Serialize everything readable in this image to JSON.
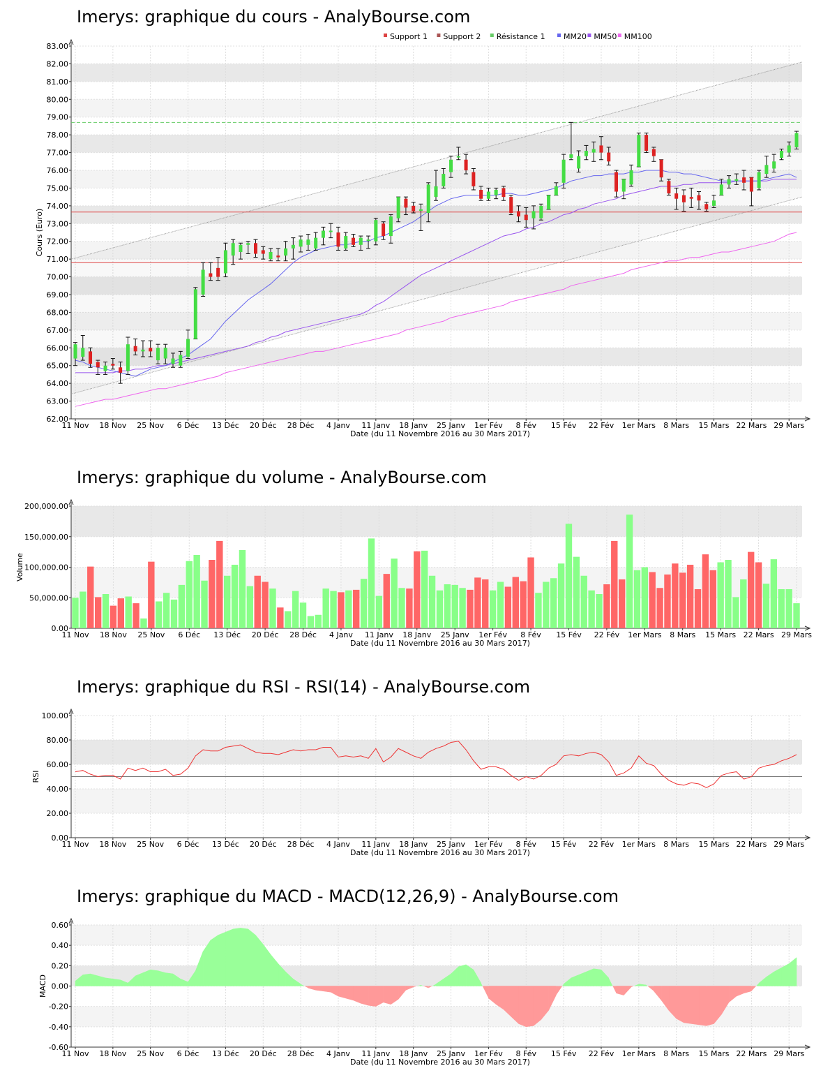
{
  "titles": {
    "price": "Imerys: graphique du cours - AnalyBourse.com",
    "volume": "Imerys: graphique du volume - AnalyBourse.com",
    "rsi": "Imerys: graphique du RSI - RSI(14) - AnalyBourse.com",
    "macd": "Imerys: graphique du MACD - MACD(12,26,9) - AnalyBourse.com"
  },
  "x_axis": {
    "ticks": [
      "11 Nov",
      "18 Nov",
      "25 Nov",
      "6 Déc",
      "13 Déc",
      "20 Déc",
      "28 Déc",
      "4 Janv",
      "11 Janv",
      "18 Janv",
      "25 Janv",
      "1er Fév",
      "8 Fév",
      "15 Fév",
      "22 Fév",
      "1er Mars",
      "8 Mars",
      "15 Mars",
      "22 Mars",
      "29 Mars"
    ],
    "tick_index": [
      0,
      5,
      10,
      15,
      20,
      25,
      30,
      35,
      40,
      45,
      50,
      55,
      60,
      65,
      70,
      75,
      80,
      85,
      90,
      95
    ],
    "label": "Date (du 11 Novembre 2016 au 30 Mars 2017)"
  },
  "colors": {
    "up": "#44dd44",
    "down": "#dd2222",
    "volume_up": "#88ff88",
    "volume_down": "#ff6666",
    "mm20": "#6666ee",
    "mm50": "#9955ee",
    "mm100": "#ee66ee",
    "support": "#dd4444",
    "resistance": "#66cc66",
    "rsi": "#ee3333",
    "macd_pos": "#99ff99",
    "macd_neg": "#ff9999",
    "band_light": "#f4f4f4",
    "band_dark": "#e8e8e8"
  },
  "chart_data": [
    {
      "name": "price",
      "type": "candlestick",
      "ylabel": "Cours (Euro)",
      "ylim": [
        62,
        83
      ],
      "ytick_step": 1,
      "ytick_decimals": 2,
      "legend": [
        "Support 1",
        "Support 2",
        "Résistance 1",
        "MM20",
        "MM50",
        "MM100"
      ],
      "legend_colors": [
        "#dd4444",
        "#aa5555",
        "#66cc66",
        "#6666ee",
        "#9955ee",
        "#ee66ee"
      ],
      "support_1": 73.65,
      "support_2": 70.8,
      "resistance_1": 78.7,
      "channel_upper": [
        71.0,
        82.1
      ],
      "channel_lower": [
        63.4,
        74.5
      ],
      "candles": [
        [
          65.4,
          66.2,
          66.3,
          65.0
        ],
        [
          65.5,
          66.0,
          66.7,
          65.3
        ],
        [
          65.8,
          65.1,
          66.0,
          64.9
        ],
        [
          65.2,
          64.9,
          65.3,
          64.5
        ],
        [
          64.7,
          65.0,
          65.2,
          64.5
        ],
        [
          65.1,
          65.0,
          65.4,
          64.8
        ],
        [
          64.9,
          64.6,
          65.2,
          64.0
        ],
        [
          64.7,
          66.2,
          66.6,
          64.5
        ],
        [
          66.1,
          65.8,
          66.5,
          65.6
        ],
        [
          65.8,
          65.9,
          66.4,
          65.5
        ],
        [
          66.0,
          65.8,
          66.4,
          65.5
        ],
        [
          65.3,
          66.0,
          66.2,
          65.1
        ],
        [
          65.4,
          66.0,
          66.2,
          65.1
        ],
        [
          65.1,
          65.4,
          65.7,
          64.9
        ],
        [
          65.0,
          65.6,
          65.8,
          64.9
        ],
        [
          65.5,
          66.5,
          67.0,
          65.4
        ],
        [
          66.5,
          69.3,
          69.4,
          66.5
        ],
        [
          69.0,
          70.4,
          70.8,
          68.9
        ],
        [
          70.2,
          70.0,
          70.8,
          69.8
        ],
        [
          70.5,
          70.0,
          71.1,
          69.8
        ],
        [
          70.2,
          71.5,
          71.9,
          70.0
        ],
        [
          71.2,
          71.9,
          72.1,
          70.7
        ],
        [
          71.4,
          71.8,
          71.9,
          71.0
        ],
        [
          71.8,
          71.9,
          72.0,
          71.3
        ],
        [
          71.9,
          71.3,
          72.1,
          71.1
        ],
        [
          71.5,
          71.3,
          71.7,
          71.0
        ],
        [
          71.0,
          71.4,
          71.6,
          70.9
        ],
        [
          71.2,
          71.1,
          71.6,
          70.9
        ],
        [
          71.2,
          71.6,
          72.0,
          70.9
        ],
        [
          71.6,
          71.8,
          72.2,
          71.0
        ],
        [
          71.7,
          72.1,
          72.3,
          71.4
        ],
        [
          71.8,
          72.1,
          72.4,
          71.5
        ],
        [
          71.6,
          72.2,
          72.5,
          71.5
        ],
        [
          72.2,
          72.6,
          72.8,
          71.8
        ],
        [
          72.6,
          72.6,
          73.0,
          72.2
        ],
        [
          72.5,
          71.7,
          72.8,
          71.5
        ],
        [
          71.6,
          72.3,
          72.5,
          71.5
        ],
        [
          72.2,
          71.8,
          72.4,
          71.7
        ],
        [
          71.8,
          72.2,
          72.3,
          71.5
        ],
        [
          72.1,
          72.1,
          72.3,
          71.6
        ],
        [
          72.0,
          73.2,
          73.3,
          71.8
        ],
        [
          73.0,
          72.3,
          73.1,
          72.1
        ],
        [
          72.3,
          73.4,
          73.5,
          71.9
        ],
        [
          73.3,
          74.5,
          74.5,
          73.1
        ],
        [
          74.4,
          73.9,
          74.5,
          73.5
        ],
        [
          74.0,
          73.7,
          74.2,
          73.6
        ],
        [
          73.8,
          73.8,
          74.1,
          72.6
        ],
        [
          73.6,
          75.2,
          75.3,
          73.1
        ],
        [
          74.5,
          75.1,
          76.0,
          74.3
        ],
        [
          75.1,
          75.8,
          76.1,
          75.0
        ],
        [
          75.9,
          76.6,
          76.8,
          75.6
        ],
        [
          76.8,
          76.8,
          77.3,
          76.6
        ],
        [
          76.6,
          76.0,
          76.9,
          75.8
        ],
        [
          75.9,
          75.1,
          76.1,
          74.9
        ],
        [
          74.9,
          74.4,
          75.1,
          74.3
        ],
        [
          74.4,
          74.8,
          75.0,
          74.3
        ],
        [
          74.6,
          74.9,
          75.0,
          74.4
        ],
        [
          75.0,
          74.5,
          75.1,
          74.3
        ],
        [
          74.5,
          73.6,
          74.6,
          73.5
        ],
        [
          73.7,
          73.4,
          74.0,
          73.1
        ],
        [
          73.5,
          73.2,
          73.9,
          72.8
        ],
        [
          73.3,
          73.7,
          74.0,
          72.7
        ],
        [
          73.3,
          74.0,
          74.1,
          73.2
        ],
        [
          73.8,
          74.6,
          74.6,
          73.8
        ],
        [
          74.6,
          75.1,
          75.3,
          74.6
        ],
        [
          75.3,
          76.6,
          76.9,
          75.0
        ],
        [
          76.7,
          76.9,
          78.7,
          76.6
        ],
        [
          76.1,
          76.8,
          77.1,
          75.9
        ],
        [
          76.8,
          77.1,
          77.4,
          76.6
        ],
        [
          77.0,
          77.2,
          77.6,
          76.5
        ],
        [
          77.4,
          77.0,
          77.9,
          76.6
        ],
        [
          77.0,
          76.5,
          77.3,
          76.3
        ],
        [
          75.9,
          74.8,
          76.0,
          74.5
        ],
        [
          74.8,
          75.5,
          75.5,
          74.4
        ],
        [
          75.2,
          76.0,
          76.3,
          75.1
        ],
        [
          76.2,
          78.0,
          78.1,
          76.2
        ],
        [
          78.0,
          77.1,
          78.1,
          77.0
        ],
        [
          77.2,
          76.8,
          77.3,
          76.5
        ],
        [
          76.6,
          75.6,
          76.6,
          75.4
        ],
        [
          75.4,
          74.7,
          75.5,
          74.6
        ],
        [
          74.7,
          74.4,
          75.0,
          73.8
        ],
        [
          74.6,
          74.2,
          74.9,
          73.7
        ],
        [
          74.5,
          74.4,
          75.0,
          73.9
        ],
        [
          74.6,
          74.3,
          74.8,
          73.8
        ],
        [
          74.1,
          73.8,
          74.2,
          73.7
        ],
        [
          74.0,
          74.3,
          74.6,
          73.9
        ],
        [
          74.6,
          75.2,
          75.5,
          74.6
        ],
        [
          75.2,
          75.5,
          75.7,
          75.0
        ],
        [
          75.4,
          75.5,
          75.8,
          75.2
        ],
        [
          75.6,
          75.3,
          76.0,
          74.9
        ],
        [
          75.6,
          74.8,
          75.6,
          74.0
        ],
        [
          75.0,
          75.9,
          76.0,
          74.9
        ],
        [
          75.8,
          76.3,
          76.8,
          75.6
        ],
        [
          76.1,
          76.5,
          76.9,
          75.9
        ],
        [
          76.7,
          77.1,
          77.2,
          76.6
        ],
        [
          77.0,
          77.4,
          77.6,
          76.8
        ],
        [
          77.3,
          78.1,
          78.2,
          77.2
        ]
      ],
      "mm20": [
        65.3,
        65.2,
        65.0,
        64.9,
        64.8,
        64.7,
        64.6,
        64.5,
        64.4,
        64.6,
        64.8,
        64.9,
        65.0,
        65.2,
        65.4,
        65.6,
        65.9,
        66.2,
        66.5,
        67.0,
        67.5,
        67.9,
        68.3,
        68.7,
        69.0,
        69.3,
        69.6,
        70.0,
        70.4,
        70.8,
        71.1,
        71.3,
        71.5,
        71.6,
        71.7,
        71.8,
        71.8,
        71.9,
        72.0,
        72.0,
        72.2,
        72.3,
        72.5,
        72.7,
        72.9,
        73.1,
        73.4,
        73.7,
        74.0,
        74.2,
        74.4,
        74.5,
        74.6,
        74.6,
        74.6,
        74.6,
        74.6,
        74.7,
        74.7,
        74.6,
        74.6,
        74.7,
        74.8,
        74.9,
        75.0,
        75.2,
        75.4,
        75.5,
        75.6,
        75.7,
        75.7,
        75.8,
        75.8,
        75.8,
        75.9,
        75.9,
        76.0,
        76.0,
        76.0,
        75.9,
        75.9,
        75.8,
        75.8,
        75.7,
        75.6,
        75.5,
        75.4,
        75.4,
        75.4,
        75.4,
        75.4,
        75.4,
        75.5,
        75.6,
        75.7,
        75.8,
        75.6
      ],
      "mm50": [
        64.6,
        64.6,
        64.6,
        64.6,
        64.6,
        64.6,
        64.7,
        64.7,
        64.8,
        64.8,
        64.9,
        65.0,
        65.0,
        65.1,
        65.2,
        65.3,
        65.4,
        65.5,
        65.6,
        65.7,
        65.8,
        65.9,
        66.0,
        66.1,
        66.3,
        66.4,
        66.6,
        66.7,
        66.9,
        67.0,
        67.1,
        67.2,
        67.3,
        67.4,
        67.5,
        67.6,
        67.7,
        67.8,
        67.9,
        68.1,
        68.4,
        68.6,
        68.9,
        69.2,
        69.5,
        69.8,
        70.1,
        70.3,
        70.5,
        70.7,
        70.9,
        71.1,
        71.3,
        71.5,
        71.7,
        71.9,
        72.1,
        72.3,
        72.4,
        72.5,
        72.7,
        72.8,
        73.0,
        73.1,
        73.3,
        73.5,
        73.6,
        73.8,
        73.9,
        74.1,
        74.2,
        74.3,
        74.4,
        74.6,
        74.7,
        74.8,
        74.9,
        75.0,
        75.1,
        75.1,
        75.1,
        75.2,
        75.2,
        75.3,
        75.3,
        75.3,
        75.3,
        75.3,
        75.4,
        75.4,
        75.4,
        75.4,
        75.4,
        75.5,
        75.5,
        75.5,
        75.5
      ],
      "mm100": [
        62.7,
        62.8,
        62.9,
        63.0,
        63.1,
        63.1,
        63.2,
        63.3,
        63.4,
        63.5,
        63.6,
        63.7,
        63.7,
        63.8,
        63.9,
        64.0,
        64.1,
        64.2,
        64.3,
        64.4,
        64.6,
        64.7,
        64.8,
        64.9,
        65.0,
        65.1,
        65.2,
        65.3,
        65.4,
        65.5,
        65.6,
        65.7,
        65.8,
        65.8,
        65.9,
        66.0,
        66.1,
        66.2,
        66.3,
        66.4,
        66.5,
        66.6,
        66.7,
        66.8,
        67.0,
        67.1,
        67.2,
        67.3,
        67.4,
        67.5,
        67.7,
        67.8,
        67.9,
        68.0,
        68.1,
        68.2,
        68.3,
        68.4,
        68.6,
        68.7,
        68.8,
        68.9,
        69.0,
        69.1,
        69.2,
        69.3,
        69.5,
        69.6,
        69.7,
        69.8,
        69.9,
        70.0,
        70.1,
        70.2,
        70.4,
        70.5,
        70.6,
        70.7,
        70.8,
        70.9,
        70.9,
        71.0,
        71.1,
        71.1,
        71.2,
        71.3,
        71.4,
        71.4,
        71.5,
        71.6,
        71.7,
        71.8,
        71.9,
        72.0,
        72.2,
        72.4,
        72.5
      ]
    },
    {
      "name": "volume",
      "type": "bar",
      "ylabel": "Volume",
      "ylim": [
        0,
        200000
      ],
      "ytick_step": 50000,
      "ytick_decimals": 2,
      "values": [
        50000,
        60000,
        101000,
        51000,
        56000,
        37000,
        49000,
        52000,
        41000,
        16000,
        109000,
        44000,
        58000,
        47000,
        71000,
        110000,
        120000,
        78000,
        112000,
        143000,
        86000,
        104000,
        128000,
        69000,
        86000,
        76000,
        65000,
        34000,
        28000,
        61000,
        42000,
        20000,
        22000,
        65000,
        61000,
        59000,
        62000,
        63000,
        81000,
        147000,
        53000,
        89000,
        114000,
        66000,
        65000,
        126000,
        127000,
        86000,
        62000,
        72000,
        71000,
        66000,
        63000,
        83000,
        80000,
        62000,
        76000,
        68000,
        84000,
        77000,
        116000,
        58000,
        76000,
        82000,
        106000,
        171000,
        117000,
        86000,
        62000,
        56000,
        72000,
        143000,
        80000,
        186000,
        95000,
        100000,
        92000,
        66000,
        88000,
        106000,
        91000,
        104000,
        64000,
        121000,
        95000,
        108000,
        112000,
        51000,
        80000,
        125000,
        108000,
        73000,
        113000,
        64000,
        64000,
        41000
      ]
    },
    {
      "name": "rsi",
      "type": "line",
      "ylabel": "RSI",
      "ylim": [
        0,
        100
      ],
      "ytick_step": 20,
      "ytick_decimals": 2,
      "reference": 50,
      "values": [
        54.0,
        55.0,
        52.0,
        50.0,
        51.0,
        51.0,
        48.0,
        57.0,
        55.0,
        57.0,
        54.0,
        54.0,
        56.0,
        51.0,
        52.0,
        57.0,
        67.0,
        72.0,
        71.0,
        71.0,
        74.0,
        75.0,
        76.0,
        73.0,
        70.0,
        69.0,
        69.0,
        68.0,
        70.0,
        72.0,
        71.0,
        72.0,
        72.0,
        74.0,
        74.0,
        66.0,
        67.0,
        66.0,
        67.0,
        65.0,
        73.0,
        62.0,
        66.0,
        73.0,
        70.0,
        67.0,
        65.0,
        70.0,
        73.0,
        75.0,
        78.0,
        79.0,
        72.0,
        63.0,
        56.0,
        58.0,
        58.0,
        56.0,
        51.0,
        47.0,
        50.0,
        48.0,
        51.0,
        57.0,
        60.0,
        67.0,
        68.0,
        67.0,
        69.0,
        70.0,
        68.0,
        62.0,
        51.0,
        53.0,
        57.0,
        67.0,
        61.0,
        59.0,
        52.0,
        47.0,
        44.0,
        43.0,
        45.0,
        44.0,
        41.0,
        44.0,
        51.0,
        53.0,
        54.0,
        48.0,
        50.0,
        57.0,
        59.0,
        60.0,
        63.0,
        65.0,
        68.0
      ]
    },
    {
      "name": "macd",
      "type": "area",
      "ylabel": "MACD",
      "ylim": [
        -0.6,
        0.6
      ],
      "ytick_step": 0.2,
      "ytick_decimals": 2,
      "values": [
        0.05,
        0.11,
        0.12,
        0.1,
        0.08,
        0.07,
        0.06,
        0.03,
        0.1,
        0.13,
        0.16,
        0.15,
        0.13,
        0.12,
        0.07,
        0.04,
        0.15,
        0.34,
        0.45,
        0.5,
        0.53,
        0.56,
        0.57,
        0.56,
        0.5,
        0.41,
        0.31,
        0.22,
        0.14,
        0.07,
        0.02,
        -0.02,
        -0.04,
        -0.05,
        -0.06,
        -0.1,
        -0.12,
        -0.14,
        -0.17,
        -0.19,
        -0.2,
        -0.16,
        -0.18,
        -0.13,
        -0.04,
        -0.01,
        0.01,
        -0.02,
        0.02,
        0.07,
        0.12,
        0.19,
        0.21,
        0.16,
        0.03,
        -0.12,
        -0.18,
        -0.23,
        -0.3,
        -0.37,
        -0.4,
        -0.39,
        -0.33,
        -0.24,
        -0.09,
        0.02,
        0.08,
        0.11,
        0.14,
        0.17,
        0.16,
        0.08,
        -0.07,
        -0.09,
        -0.01,
        0.02,
        0.01,
        -0.05,
        -0.14,
        -0.24,
        -0.32,
        -0.36,
        -0.37,
        -0.38,
        -0.39,
        -0.37,
        -0.28,
        -0.16,
        -0.1,
        -0.07,
        -0.05,
        0.03,
        0.09,
        0.14,
        0.18,
        0.22,
        0.28
      ]
    }
  ]
}
